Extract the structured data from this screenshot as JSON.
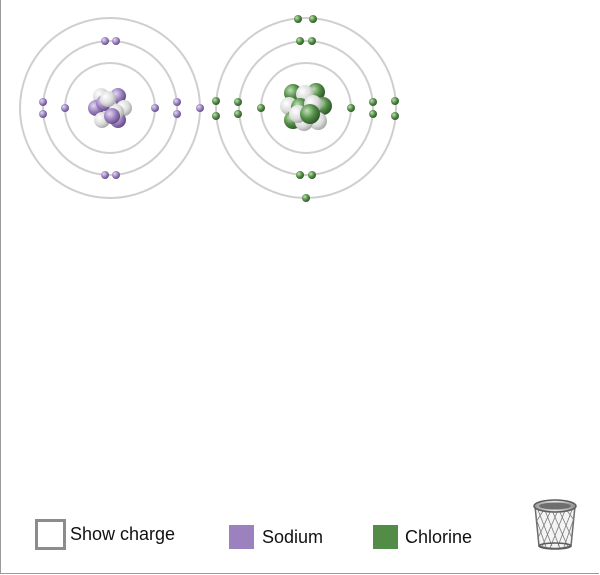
{
  "legend": {
    "show_charge_label": "Show charge",
    "show_charge_checked": false,
    "sodium_label": "Sodium",
    "chlorine_label": "Chlorine"
  },
  "colors": {
    "sodium": "#9b82be",
    "chlorine": "#528c46",
    "shell": "#cfcfcf",
    "nucleus_neutral": "#dcdcdc"
  },
  "atoms": [
    {
      "element": "Sodium",
      "shell_electrons": [
        2,
        8,
        1
      ]
    },
    {
      "element": "Chlorine",
      "shell_electrons": [
        2,
        8,
        7
      ]
    }
  ],
  "icons": {
    "trash": "trash-can-icon"
  }
}
